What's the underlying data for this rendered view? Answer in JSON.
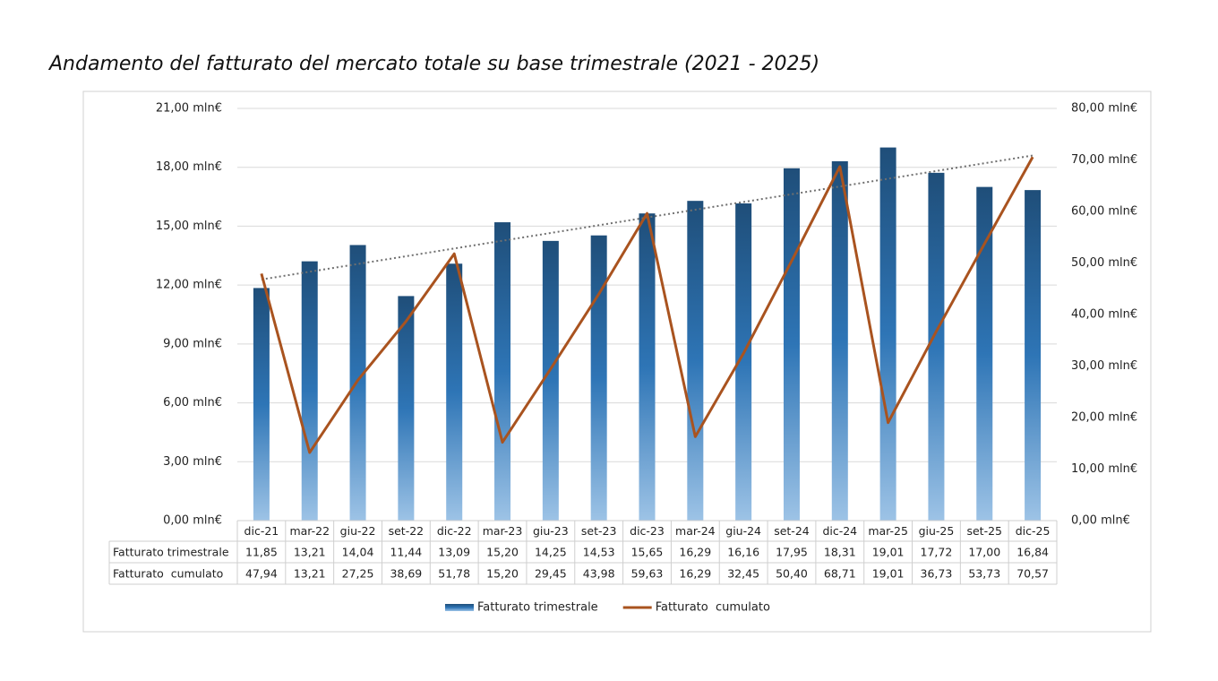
{
  "chart_data": {
    "type": "bar",
    "title": "Andamento del fatturato del mercato totale su base trimestrale (2021 - 2025)",
    "categories": [
      "dic-21",
      "mar-22",
      "giu-22",
      "set-22",
      "dic-22",
      "mar-23",
      "giu-23",
      "set-23",
      "dic-23",
      "mar-24",
      "giu-24",
      "set-24",
      "dic-24",
      "mar-25",
      "giu-25",
      "set-25",
      "dic-25"
    ],
    "series": [
      {
        "name": "Fatturato trimestrale",
        "type": "bar",
        "color": "#1f5d99",
        "values": [
          11.85,
          13.21,
          14.04,
          11.44,
          13.09,
          15.2,
          14.25,
          14.53,
          15.65,
          16.29,
          16.16,
          17.95,
          18.31,
          19.01,
          17.72,
          17.0,
          16.84
        ],
        "value_labels": [
          "11,85",
          "13,21",
          "14,04",
          "11,44",
          "13,09",
          "15,20",
          "14,25",
          "14,53",
          "15,65",
          "16,29",
          "16,16",
          "17,95",
          "18,31",
          "19,01",
          "17,72",
          "17,00",
          "16,84"
        ]
      },
      {
        "name": "Fatturato  cumulato",
        "type": "line",
        "axis": "y2",
        "color": "#a9531f",
        "values": [
          47.94,
          13.21,
          27.25,
          38.69,
          51.78,
          15.2,
          29.45,
          43.98,
          59.63,
          16.29,
          32.45,
          50.4,
          68.71,
          19.01,
          36.73,
          53.73,
          70.57
        ],
        "value_labels": [
          "47,94",
          "13,21",
          "27,25",
          "38,69",
          "51,78",
          "15,20",
          "29,45",
          "43,98",
          "59,63",
          "16,29",
          "32,45",
          "50,40",
          "68,71",
          "19,01",
          "36,73",
          "53,73",
          "70,57"
        ]
      }
    ],
    "ylim": [
      0,
      21
    ],
    "yticks": [
      {
        "value": 0,
        "label": "0,00 mln€"
      },
      {
        "value": 3,
        "label": "3,00 mln€"
      },
      {
        "value": 6,
        "label": "6,00 mln€"
      },
      {
        "value": 9,
        "label": "9,00 mln€"
      },
      {
        "value": 12,
        "label": "12,00 mln€"
      },
      {
        "value": 15,
        "label": "15,00 mln€"
      },
      {
        "value": 18,
        "label": "18,00 mln€"
      },
      {
        "value": 21,
        "label": "21,00 mln€"
      }
    ],
    "y2lim": [
      0,
      80
    ],
    "y2ticks": [
      {
        "value": 0,
        "label": "0,00 mln€"
      },
      {
        "value": 10,
        "label": "10,00 mln€"
      },
      {
        "value": 20,
        "label": "20,00 mln€"
      },
      {
        "value": 30,
        "label": "30,00 mln€"
      },
      {
        "value": 40,
        "label": "40,00 mln€"
      },
      {
        "value": 50,
        "label": "50,00 mln€"
      },
      {
        "value": 60,
        "label": "60,00 mln€"
      },
      {
        "value": 70,
        "label": "70,00 mln€"
      },
      {
        "value": 80,
        "label": "80,00 mln€"
      }
    ],
    "grid": true,
    "trendline": true,
    "data_table": true,
    "legend": "bottom"
  }
}
